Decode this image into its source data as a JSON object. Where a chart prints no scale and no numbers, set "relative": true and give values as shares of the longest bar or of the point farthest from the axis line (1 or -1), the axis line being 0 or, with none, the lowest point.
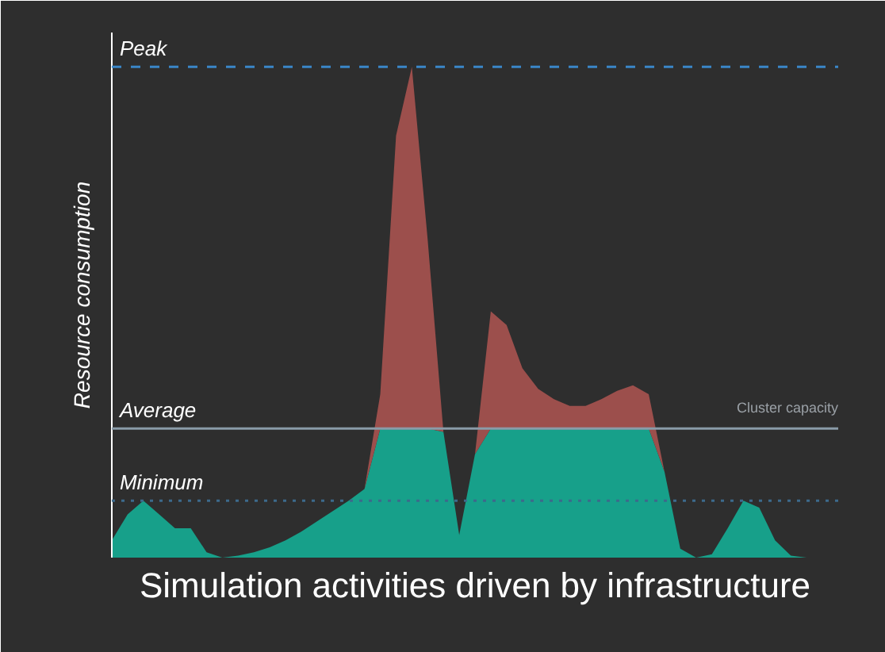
{
  "chart_data": {
    "type": "area",
    "relative": true,
    "stacked": true,
    "xlabel": "Simulation activities driven by infrastructure",
    "ylabel": "Resource consumption",
    "categories": [
      null,
      null,
      null,
      null,
      null,
      null,
      null,
      null,
      null,
      null,
      null,
      null,
      null,
      null,
      null,
      null,
      null,
      null,
      null,
      null,
      null,
      null,
      null,
      null,
      null,
      null,
      null,
      null,
      null,
      null,
      null,
      null,
      null,
      null,
      null,
      null,
      null,
      null,
      null,
      null,
      null,
      null,
      null,
      null,
      null,
      null
    ],
    "series": [
      {
        "color": "#17a08a",
        "values": [
          0.035,
          0.088,
          0.116,
          0.088,
          0.06,
          0.06,
          0.011,
          0,
          0.004,
          0.011,
          0.021,
          0.035,
          0.053,
          0.074,
          0.095,
          0.116,
          0.14,
          0.263,
          0.263,
          0.263,
          0.263,
          0.256,
          0.046,
          0.211,
          0.263,
          0.263,
          0.263,
          0.263,
          0.263,
          0.263,
          0.263,
          0.263,
          0.263,
          0.263,
          0.263,
          0.175,
          0.018,
          0,
          0.007,
          0.06,
          0.116,
          0.102,
          0.035,
          0.004,
          0,
          0
        ]
      },
      {
        "color": "#9c4f4c",
        "values": [
          0,
          0,
          0,
          0,
          0,
          0,
          0,
          0,
          0,
          0,
          0,
          0,
          0,
          0,
          0,
          0,
          0,
          0.07,
          0.597,
          0.737,
          0.386,
          0,
          0,
          0,
          0.239,
          0.211,
          0.123,
          0.081,
          0.06,
          0.046,
          0.046,
          0.06,
          0.077,
          0.088,
          0.07,
          0,
          0,
          0,
          0,
          0,
          0,
          0,
          0,
          0,
          0,
          0
        ]
      }
    ],
    "ref_lines": [
      {
        "axis": "y",
        "value": 1,
        "label": "Peak",
        "color": "#3a86c8",
        "line_style": "dashed"
      },
      {
        "axis": "y",
        "value": 0.263,
        "label": "Average",
        "color": "#8a9ba8",
        "line_style": "solid"
      },
      {
        "axis": "y",
        "value": 0.116,
        "label": "Minimum",
        "color": "#3c6a8c",
        "line_style": "dotted"
      }
    ],
    "annotations": [
      "Cluster capacity"
    ],
    "grid": false
  }
}
